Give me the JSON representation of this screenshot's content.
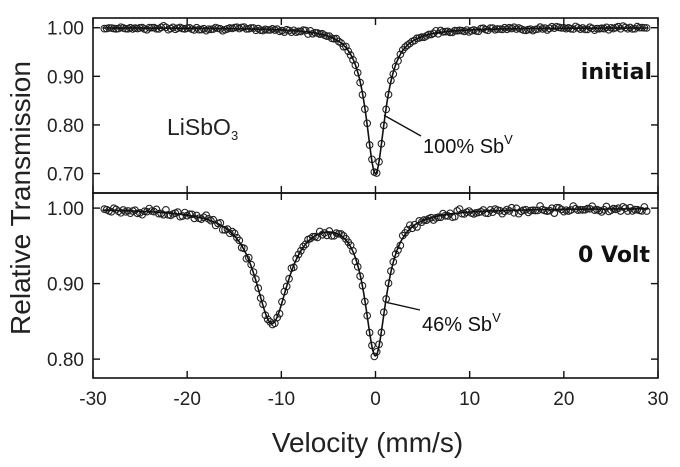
{
  "chart_data": {
    "type": "scatter",
    "xlabel": "Velocity (mm/s)",
    "ylabel": "Relative Transmission",
    "xlim": [
      -30,
      30
    ],
    "xticks": [
      -30,
      -20,
      -10,
      0,
      10,
      20,
      30
    ],
    "xtick_labels": [
      "-30",
      "-20",
      "-10",
      "0",
      "10",
      "20",
      "30"
    ],
    "panels": [
      {
        "name": "top",
        "label": "initial",
        "compound": {
          "base": "LiSbO",
          "subscript": "3"
        },
        "annotation": {
          "text": "100% Sb",
          "superscript": "V",
          "point": [
            0.9,
            0.82
          ]
        },
        "ylim": [
          0.66,
          1.02
        ],
        "yticks": [
          0.7,
          0.8,
          0.9,
          1.0
        ],
        "ytick_labels": [
          "0.70",
          "0.80",
          "0.90",
          "1.00"
        ],
        "fit": {
          "components": [
            {
              "center": 0.0,
              "depth": 0.3,
              "hwhm": 1.25
            }
          ],
          "baseline": 1.0
        },
        "noise": 0.0035
      },
      {
        "name": "bottom",
        "label": "0 Volt",
        "annotation": {
          "text": "46% Sb",
          "superscript": "V",
          "point": [
            1.2,
            0.875
          ]
        },
        "ylim": [
          0.775,
          1.02
        ],
        "yticks": [
          0.8,
          0.9,
          1.0
        ],
        "ytick_labels": [
          "0.80",
          "0.90",
          "1.00"
        ],
        "fit": {
          "components": [
            {
              "center": -11.0,
              "depth": 0.15,
              "hwhm": 2.2
            },
            {
              "center": 0.0,
              "depth": 0.19,
              "hwhm": 1.4
            }
          ],
          "baseline": 1.0
        },
        "noise": 0.004
      }
    ]
  }
}
